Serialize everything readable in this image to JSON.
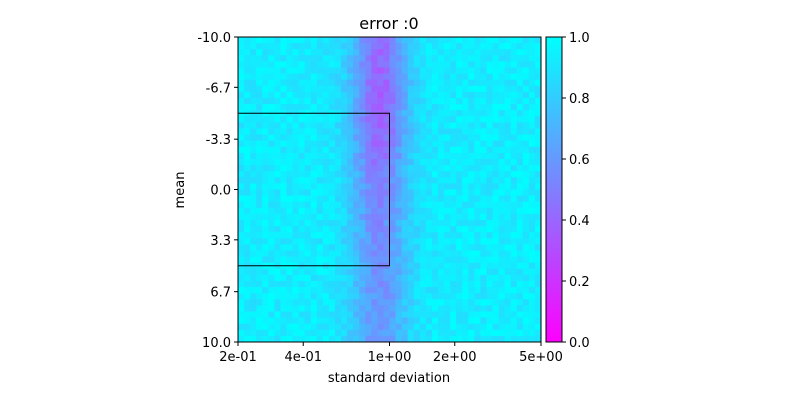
{
  "chart_data": {
    "type": "heatmap",
    "title": "error :0",
    "xlabel": "standard deviation",
    "ylabel": "mean",
    "x_scale": "log",
    "x_range": [
      0.2,
      5.0
    ],
    "x_ticks": [
      0.2,
      0.4,
      1.0,
      2.0,
      5.0
    ],
    "x_tick_labels": [
      "2e-01",
      "4e-01",
      "1e+00",
      "2e+00",
      "5e+00"
    ],
    "y_range": [
      -10.0,
      10.0
    ],
    "y_ticks": [
      -10.0,
      -6.7,
      -3.3,
      0.0,
      3.3,
      6.7,
      10.0
    ],
    "y_tick_labels": [
      "-10.0",
      "-6.7",
      "-3.3",
      "0.0",
      "3.3",
      "6.7",
      "10.0"
    ],
    "y_inverted": true,
    "grid": {
      "nx": 50,
      "ny": 50
    },
    "colormap": {
      "name": "cool",
      "low_color": "#ff00ff",
      "high_color": "#00ffff"
    },
    "color_range": [
      0.0,
      1.0
    ],
    "colorbar_ticks": [
      0.0,
      0.2,
      0.4,
      0.6,
      0.8,
      1.0
    ],
    "colorbar_tick_labels": [
      "0.0",
      "0.2",
      "0.4",
      "0.6",
      "0.8",
      "1.0"
    ],
    "value_profile": {
      "baseline": 0.93,
      "dip_center_std": 0.9,
      "dip_depth_min": 0.35,
      "dip_depth_max": 0.55,
      "strongest_dip_mean": -6.0
    },
    "highlight_region": {
      "x_range": [
        0.2,
        1.0
      ],
      "y_range": [
        -5.0,
        5.0
      ]
    }
  }
}
